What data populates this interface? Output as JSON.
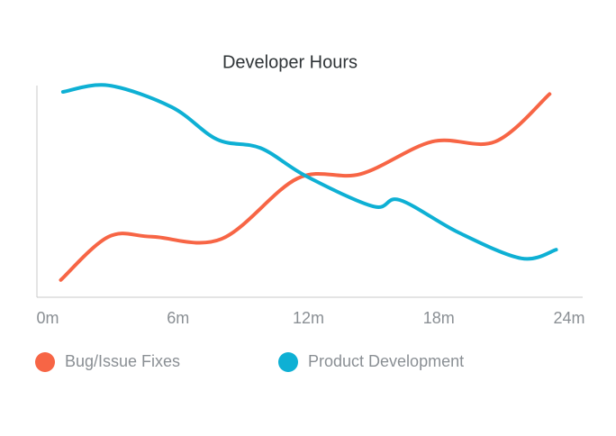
{
  "chart_data": {
    "type": "line",
    "title": "Developer Hours",
    "xlim": [
      0,
      24
    ],
    "xticks": [
      {
        "value": 0,
        "label": "0m"
      },
      {
        "value": 6,
        "label": "6m"
      },
      {
        "value": 12,
        "label": "12m"
      },
      {
        "value": 18,
        "label": "18m"
      },
      {
        "value": 24,
        "label": "24m"
      }
    ],
    "ylim": [
      0,
      100
    ],
    "grid": false,
    "series": [
      {
        "name": "Bug/Issue Fixes",
        "color": "#f76545",
        "x": [
          0.6,
          2.8,
          4.8,
          8,
          11.5,
          14.4,
          17.7,
          20.6,
          23.1
        ],
        "values": [
          8,
          28,
          28,
          27,
          55,
          57,
          72,
          72,
          94
        ]
      },
      {
        "name": "Product Development",
        "color": "#0eb0d4",
        "x": [
          0.7,
          2.8,
          5.7,
          7.8,
          9.8,
          11.9,
          15,
          16.2,
          18.9,
          21.8,
          23.4
        ],
        "values": [
          95,
          98,
          88,
          73,
          69,
          56,
          42,
          45,
          30,
          18,
          22
        ]
      }
    ]
  }
}
